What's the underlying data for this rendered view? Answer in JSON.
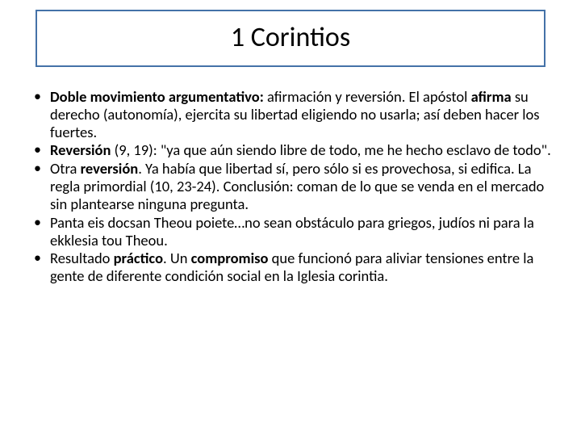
{
  "slide": {
    "title": "1 Corintios",
    "title_box_border_color": "#4472a8",
    "bullets": [
      {
        "b1": "Doble movimiento argumentativo:",
        "t1": " afirmación y reversión. El apóstol ",
        "b2": "afirma",
        "t2": " su derecho (autonomía), ejercita su libertad eligiendo no usarla; así deben hacer los fuertes."
      },
      {
        "b1": "Reversión",
        "t1": " (9, 19): \"ya que aún siendo libre de todo, me he hecho esclavo de todo\"."
      },
      {
        "t0": "Otra ",
        "b1": "reversión",
        "t1": ". Ya había que libertad sí, pero sólo si es provechosa, si edifica. La regla primordial (10, 23-24). Conclusión: coman de lo que se venda en el mercado sin plantearse ninguna pregunta."
      },
      {
        "t0": "Panta eis docsan Theou poiete…no sean obstáculo para griegos, judíos ni para la ekklesia tou Theou."
      },
      {
        "t0": "Resultado ",
        "b1": "práctico",
        "t1": ". Un ",
        "b2": "compromiso",
        "t2": " que funcionó para aliviar tensiones entre la gente de diferente condición social en la Iglesia corintia."
      }
    ]
  },
  "colors": {
    "background": "#ffffff",
    "text": "#000000"
  }
}
